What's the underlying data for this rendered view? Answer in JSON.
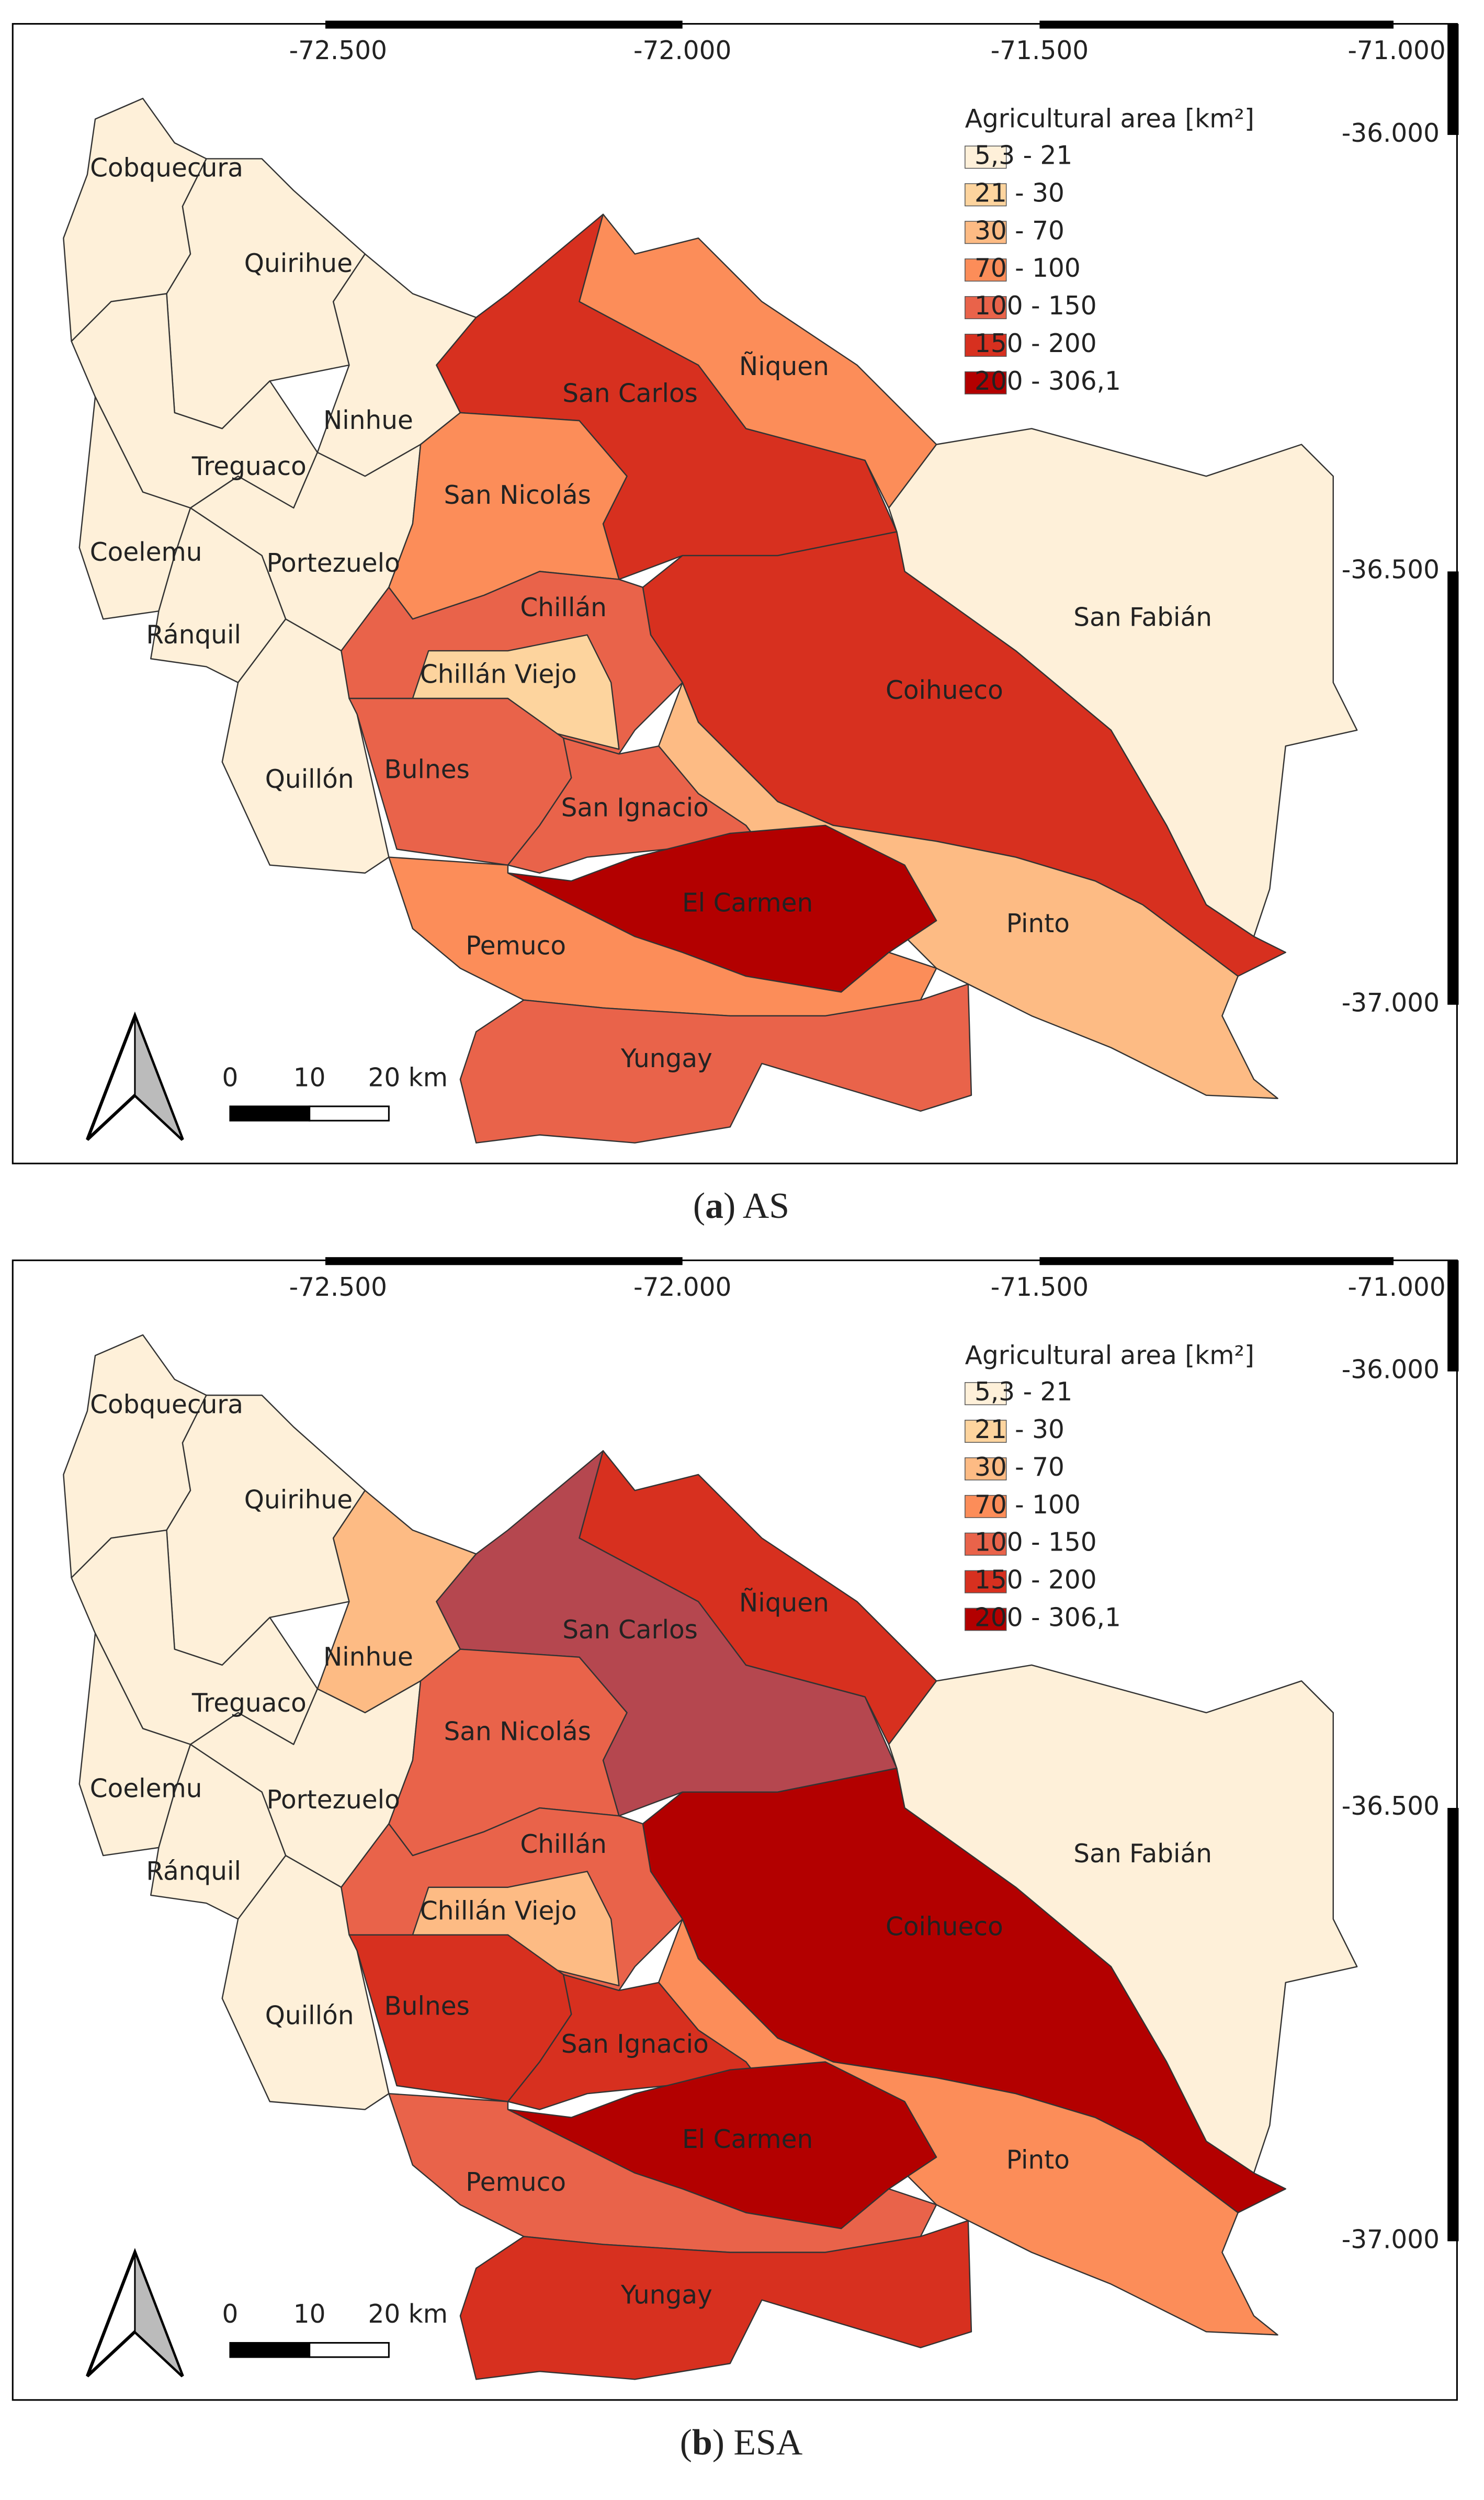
{
  "axis": {
    "x_ticks": [
      "-72.500",
      "-72.000",
      "-71.500",
      "-71.000"
    ],
    "y_ticks": [
      "-36.000",
      "-36.500",
      "-37.000"
    ]
  },
  "legend": {
    "title": "Agricultural area [km²]",
    "classes": [
      {
        "label": "5,3 - 21",
        "color": "#fef0d9"
      },
      {
        "label": "21 - 30",
        "color": "#fdd49e"
      },
      {
        "label": "30 - 70",
        "color": "#fdbb84"
      },
      {
        "label": "70 - 100",
        "color": "#fc8d59"
      },
      {
        "label": "100 - 150",
        "color": "#e9634a"
      },
      {
        "label": "150 - 200",
        "color": "#d7301f"
      },
      {
        "label": "200 - 306,1",
        "color": "#b30000"
      }
    ]
  },
  "scale_bar": {
    "labels": [
      "0",
      "10",
      "20 km"
    ]
  },
  "panels": [
    {
      "caption": {
        "prefix": "(",
        "label": "a",
        "text": ") AS"
      },
      "communes": [
        {
          "name": "Cobquecura",
          "class": 0
        },
        {
          "name": "Quirihue",
          "class": 0
        },
        {
          "name": "Ninhue",
          "class": 0
        },
        {
          "name": "Treguaco",
          "class": 0
        },
        {
          "name": "Coelemu",
          "class": 0
        },
        {
          "name": "Portezuelo",
          "class": 0
        },
        {
          "name": "Ránquil",
          "class": 0
        },
        {
          "name": "Quillón",
          "class": 0
        },
        {
          "name": "San Carlos",
          "class": 5
        },
        {
          "name": "Ñiquen",
          "class": 3
        },
        {
          "name": "San Fabián",
          "class": 0
        },
        {
          "name": "San Nicolás",
          "class": 3
        },
        {
          "name": "Coihueco",
          "class": 5
        },
        {
          "name": "Chillán",
          "class": 4
        },
        {
          "name": "Chillán Viejo",
          "class": 1
        },
        {
          "name": "Pinto",
          "class": 2
        },
        {
          "name": "Bulnes",
          "class": 4
        },
        {
          "name": "San Ignacio",
          "class": 4
        },
        {
          "name": "El Carmen",
          "class": 6
        },
        {
          "name": "Pemuco",
          "class": 3
        },
        {
          "name": "Yungay",
          "class": 4
        }
      ]
    },
    {
      "caption": {
        "prefix": "(",
        "label": "b",
        "text": ") ESA"
      },
      "communes": [
        {
          "name": "Cobquecura",
          "class": 0
        },
        {
          "name": "Quirihue",
          "class": 0
        },
        {
          "name": "Ninhue",
          "class": 2
        },
        {
          "name": "Treguaco",
          "class": 0
        },
        {
          "name": "Coelemu",
          "class": 0
        },
        {
          "name": "Portezuelo",
          "class": 0
        },
        {
          "name": "Ránquil",
          "class": 0
        },
        {
          "name": "Quillón",
          "class": 0
        },
        {
          "name": "San Carlos",
          "class": 5,
          "color": "#b5474f"
        },
        {
          "name": "Ñiquen",
          "class": 5
        },
        {
          "name": "San Fabián",
          "class": 0
        },
        {
          "name": "San Nicolás",
          "class": 4
        },
        {
          "name": "Coihueco",
          "class": 6
        },
        {
          "name": "Chillán",
          "class": 4
        },
        {
          "name": "Chillán Viejo",
          "class": 2
        },
        {
          "name": "Pinto",
          "class": 3
        },
        {
          "name": "Bulnes",
          "class": 5
        },
        {
          "name": "San Ignacio",
          "class": 5
        },
        {
          "name": "El Carmen",
          "class": 6
        },
        {
          "name": "Pemuco",
          "class": 4
        },
        {
          "name": "Yungay",
          "class": 5
        }
      ]
    }
  ]
}
